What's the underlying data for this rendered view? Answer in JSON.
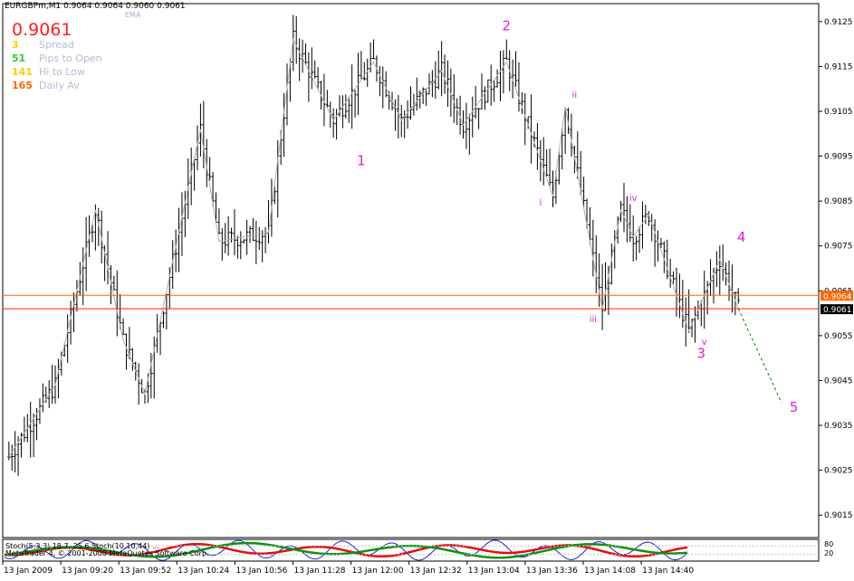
{
  "header": {
    "symbol_line": "EURGBPm,M1  0.9064 0.9064 0.9060 0.9061",
    "ema_label": "EMA",
    "big_price": "0.9061"
  },
  "stats": [
    {
      "value": "3",
      "label": "Spread",
      "color": "#ffcc00"
    },
    {
      "value": "51",
      "label": "Pips to Open",
      "color": "#33cc33"
    },
    {
      "value": "141",
      "label": "Hi to Low",
      "color": "#ffcc00"
    },
    {
      "value": "165",
      "label": "Daily Av",
      "color": "#ff6600"
    }
  ],
  "indicator_text": "Stoch(5,3,3) 18.7, 25.6  Stoch(10,10,44) ...",
  "copyright_text": "MetaTrader 4, © 2001-2008 MetaQuotes Software Corp.",
  "chart_data": {
    "type": "bar",
    "title": "EURGBPm,M1",
    "xlabel": "",
    "ylabel": "",
    "ylim": [
      0.901,
      0.9129
    ],
    "price_axis": {
      "ticks": [
        "0.9125",
        "0.9115",
        "0.9105",
        "0.9095",
        "0.9085",
        "0.9075",
        "0.9065",
        "0.9055",
        "0.9045",
        "0.9035",
        "0.9025",
        "0.9015"
      ],
      "tick_values": [
        0.9125,
        0.9115,
        0.9105,
        0.9095,
        0.9085,
        0.9075,
        0.9065,
        0.9055,
        0.9045,
        0.9035,
        0.9025,
        0.9015
      ]
    },
    "time_axis": {
      "labels": [
        "13 Jan 2009",
        "13 Jan 09:20",
        "13 Jan 09:52",
        "13 Jan 10:24",
        "13 Jan 10:56",
        "13 Jan 11:28",
        "13 Jan 12:00",
        "13 Jan 12:32",
        "13 Jan 13:04",
        "13 Jan 13:36",
        "13 Jan 14:08",
        "13 Jan 14:40"
      ]
    },
    "horizontal_lines": [
      {
        "price": 0.9064,
        "label": "0.9064",
        "color": "#ff6600"
      },
      {
        "price": 0.9061,
        "label": "0.9061",
        "color": "#ff2200"
      }
    ],
    "wave_path": [
      {
        "t": 0,
        "p": 0.9028
      },
      {
        "t": 15,
        "p": 0.9044
      },
      {
        "t": 28,
        "p": 0.9083
      },
      {
        "t": 37,
        "p": 0.9054
      },
      {
        "t": 44,
        "p": 0.9042
      },
      {
        "t": 62,
        "p": 0.9101
      },
      {
        "t": 68,
        "p": 0.9076
      },
      {
        "t": 84,
        "p": 0.9078
      },
      {
        "t": 92,
        "p": 0.9121
      },
      {
        "t": 105,
        "p": 0.9103
      },
      {
        "t": 118,
        "p": 0.9116
      },
      {
        "t": 127,
        "p": 0.9103
      },
      {
        "t": 140,
        "p": 0.9114
      },
      {
        "t": 147,
        "p": 0.9102
      },
      {
        "t": 161,
        "p": 0.9116
      },
      {
        "t": 176,
        "p": 0.9086
      },
      {
        "t": 180,
        "p": 0.9106
      },
      {
        "t": 192,
        "p": 0.9061
      },
      {
        "t": 198,
        "p": 0.9083
      },
      {
        "t": 202,
        "p": 0.9077
      },
      {
        "t": 207,
        "p": 0.9082
      },
      {
        "t": 220,
        "p": 0.9056
      },
      {
        "t": 230,
        "p": 0.9072
      },
      {
        "t": 236,
        "p": 0.9061
      }
    ],
    "projection": {
      "from_t": 236,
      "from_p": 0.9061,
      "to_t": 250,
      "to_p": 0.904,
      "color": "#008000"
    },
    "wave_labels": [
      {
        "text": "1",
        "t": 114,
        "p": 0.9093,
        "size": "big"
      },
      {
        "text": "2",
        "t": 161,
        "p": 0.9123,
        "size": "big"
      },
      {
        "text": "3",
        "t": 224,
        "p": 0.905,
        "size": "big"
      },
      {
        "text": "4",
        "t": 237,
        "p": 0.9076,
        "size": "big"
      },
      {
        "text": "5",
        "t": 254,
        "p": 0.9038,
        "size": "big"
      },
      {
        "text": "i",
        "t": 172,
        "p": 0.9084,
        "size": "small"
      },
      {
        "text": "ii",
        "t": 183,
        "p": 0.9108,
        "size": "small"
      },
      {
        "text": "iii",
        "t": 189,
        "p": 0.9058,
        "size": "small"
      },
      {
        "text": "iv",
        "t": 202,
        "p": 0.9085,
        "size": "small"
      },
      {
        "text": "v",
        "t": 225,
        "p": 0.9053,
        "size": "small"
      }
    ],
    "label_color": "#e020e0",
    "bar_color": "#000000",
    "grid": false
  }
}
